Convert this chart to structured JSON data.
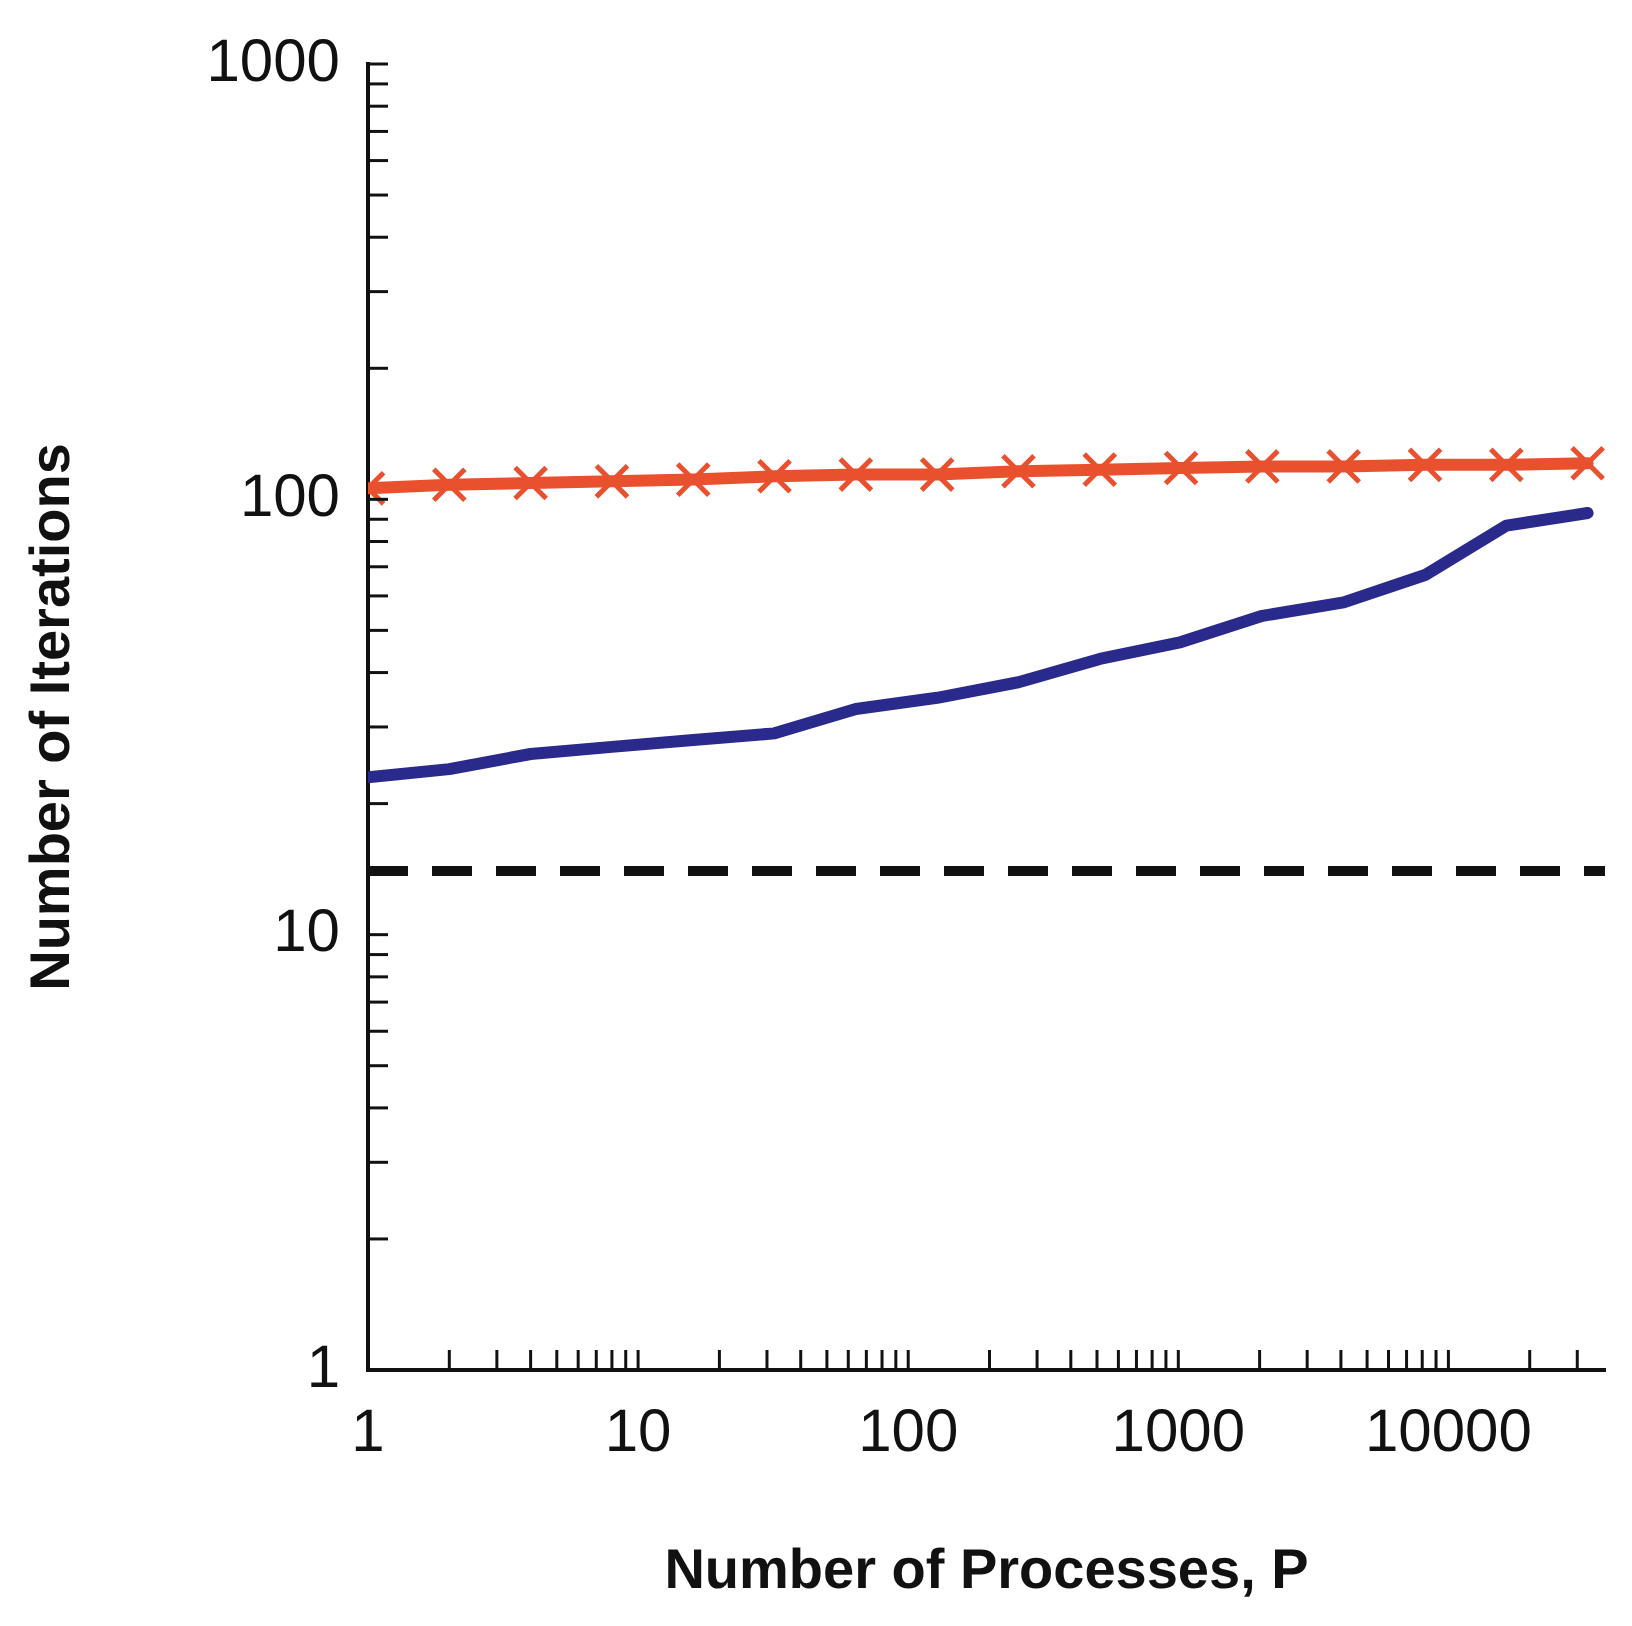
{
  "chart_data": {
    "type": "line",
    "xlabel": "Number of Processes, P",
    "ylabel": "Number of Iterations",
    "log": "xy",
    "grid": false,
    "legend": false,
    "line_style": "solid",
    "x": [
      1,
      2,
      4,
      8,
      16,
      32,
      64,
      128,
      256,
      512,
      1024,
      2048,
      4096,
      8192,
      16384,
      32768
    ],
    "xlim": [
      1,
      38000
    ],
    "ylim": [
      1,
      1000
    ],
    "xticks": [
      1,
      {
        "value": 2,
        "label": null
      },
      {
        "value": 3,
        "label": null
      },
      {
        "value": 4,
        "label": null
      },
      {
        "value": 5,
        "label": null
      },
      {
        "value": 6,
        "label": null
      },
      {
        "value": 7,
        "label": null
      },
      {
        "value": 8,
        "label": null
      },
      {
        "value": 9,
        "label": null
      },
      10,
      {
        "value": 20,
        "label": null
      },
      {
        "value": 30,
        "label": null
      },
      {
        "value": 40,
        "label": null
      },
      {
        "value": 50,
        "label": null
      },
      {
        "value": 60,
        "label": null
      },
      {
        "value": 70,
        "label": null
      },
      {
        "value": 80,
        "label": null
      },
      {
        "value": 90,
        "label": null
      },
      100,
      {
        "value": 200,
        "label": null
      },
      {
        "value": 300,
        "label": null
      },
      {
        "value": 400,
        "label": null
      },
      {
        "value": 500,
        "label": null
      },
      {
        "value": 600,
        "label": null
      },
      {
        "value": 700,
        "label": null
      },
      {
        "value": 800,
        "label": null
      },
      {
        "value": 900,
        "label": null
      },
      1000,
      {
        "value": 2000,
        "label": null
      },
      {
        "value": 3000,
        "label": null
      },
      {
        "value": 4000,
        "label": null
      },
      {
        "value": 5000,
        "label": null
      },
      {
        "value": 6000,
        "label": null
      },
      {
        "value": 7000,
        "label": null
      },
      {
        "value": 8000,
        "label": null
      },
      {
        "value": 9000,
        "label": null
      },
      10000,
      {
        "value": 20000,
        "label": null
      },
      {
        "value": 30000,
        "label": null
      }
    ],
    "yticks": [
      1,
      {
        "value": 2,
        "label": null
      },
      {
        "value": 3,
        "label": null
      },
      {
        "value": 4,
        "label": null
      },
      {
        "value": 5,
        "label": null
      },
      {
        "value": 6,
        "label": null
      },
      {
        "value": 7,
        "label": null
      },
      {
        "value": 8,
        "label": null
      },
      {
        "value": 9,
        "label": null
      },
      10,
      {
        "value": 20,
        "label": null
      },
      {
        "value": 30,
        "label": null
      },
      {
        "value": 40,
        "label": null
      },
      {
        "value": 50,
        "label": null
      },
      {
        "value": 60,
        "label": null
      },
      {
        "value": 70,
        "label": null
      },
      {
        "value": 80,
        "label": null
      },
      {
        "value": 90,
        "label": null
      },
      100,
      {
        "value": 200,
        "label": null
      },
      {
        "value": 300,
        "label": null
      },
      {
        "value": 400,
        "label": null
      },
      {
        "value": 500,
        "label": null
      },
      {
        "value": 600,
        "label": null
      },
      {
        "value": 700,
        "label": null
      },
      {
        "value": 800,
        "label": null
      },
      {
        "value": 900,
        "label": null
      },
      1000
    ],
    "series": [
      {
        "color": "#e8502e",
        "marker": "cross",
        "values": [
          106,
          108,
          109,
          110,
          111,
          113,
          114,
          114,
          116,
          117,
          118,
          119,
          119,
          120,
          120,
          121
        ]
      },
      {
        "color": "#2a2a8c",
        "marker": "none",
        "values": [
          23,
          24,
          26,
          27,
          28,
          29,
          33,
          35,
          38,
          43,
          47,
          54,
          58,
          67,
          87,
          93
        ]
      }
    ],
    "ref_lines": [
      {
        "axis": "y",
        "value": 14,
        "color": "#111111",
        "line_style": "dashed"
      }
    ]
  }
}
